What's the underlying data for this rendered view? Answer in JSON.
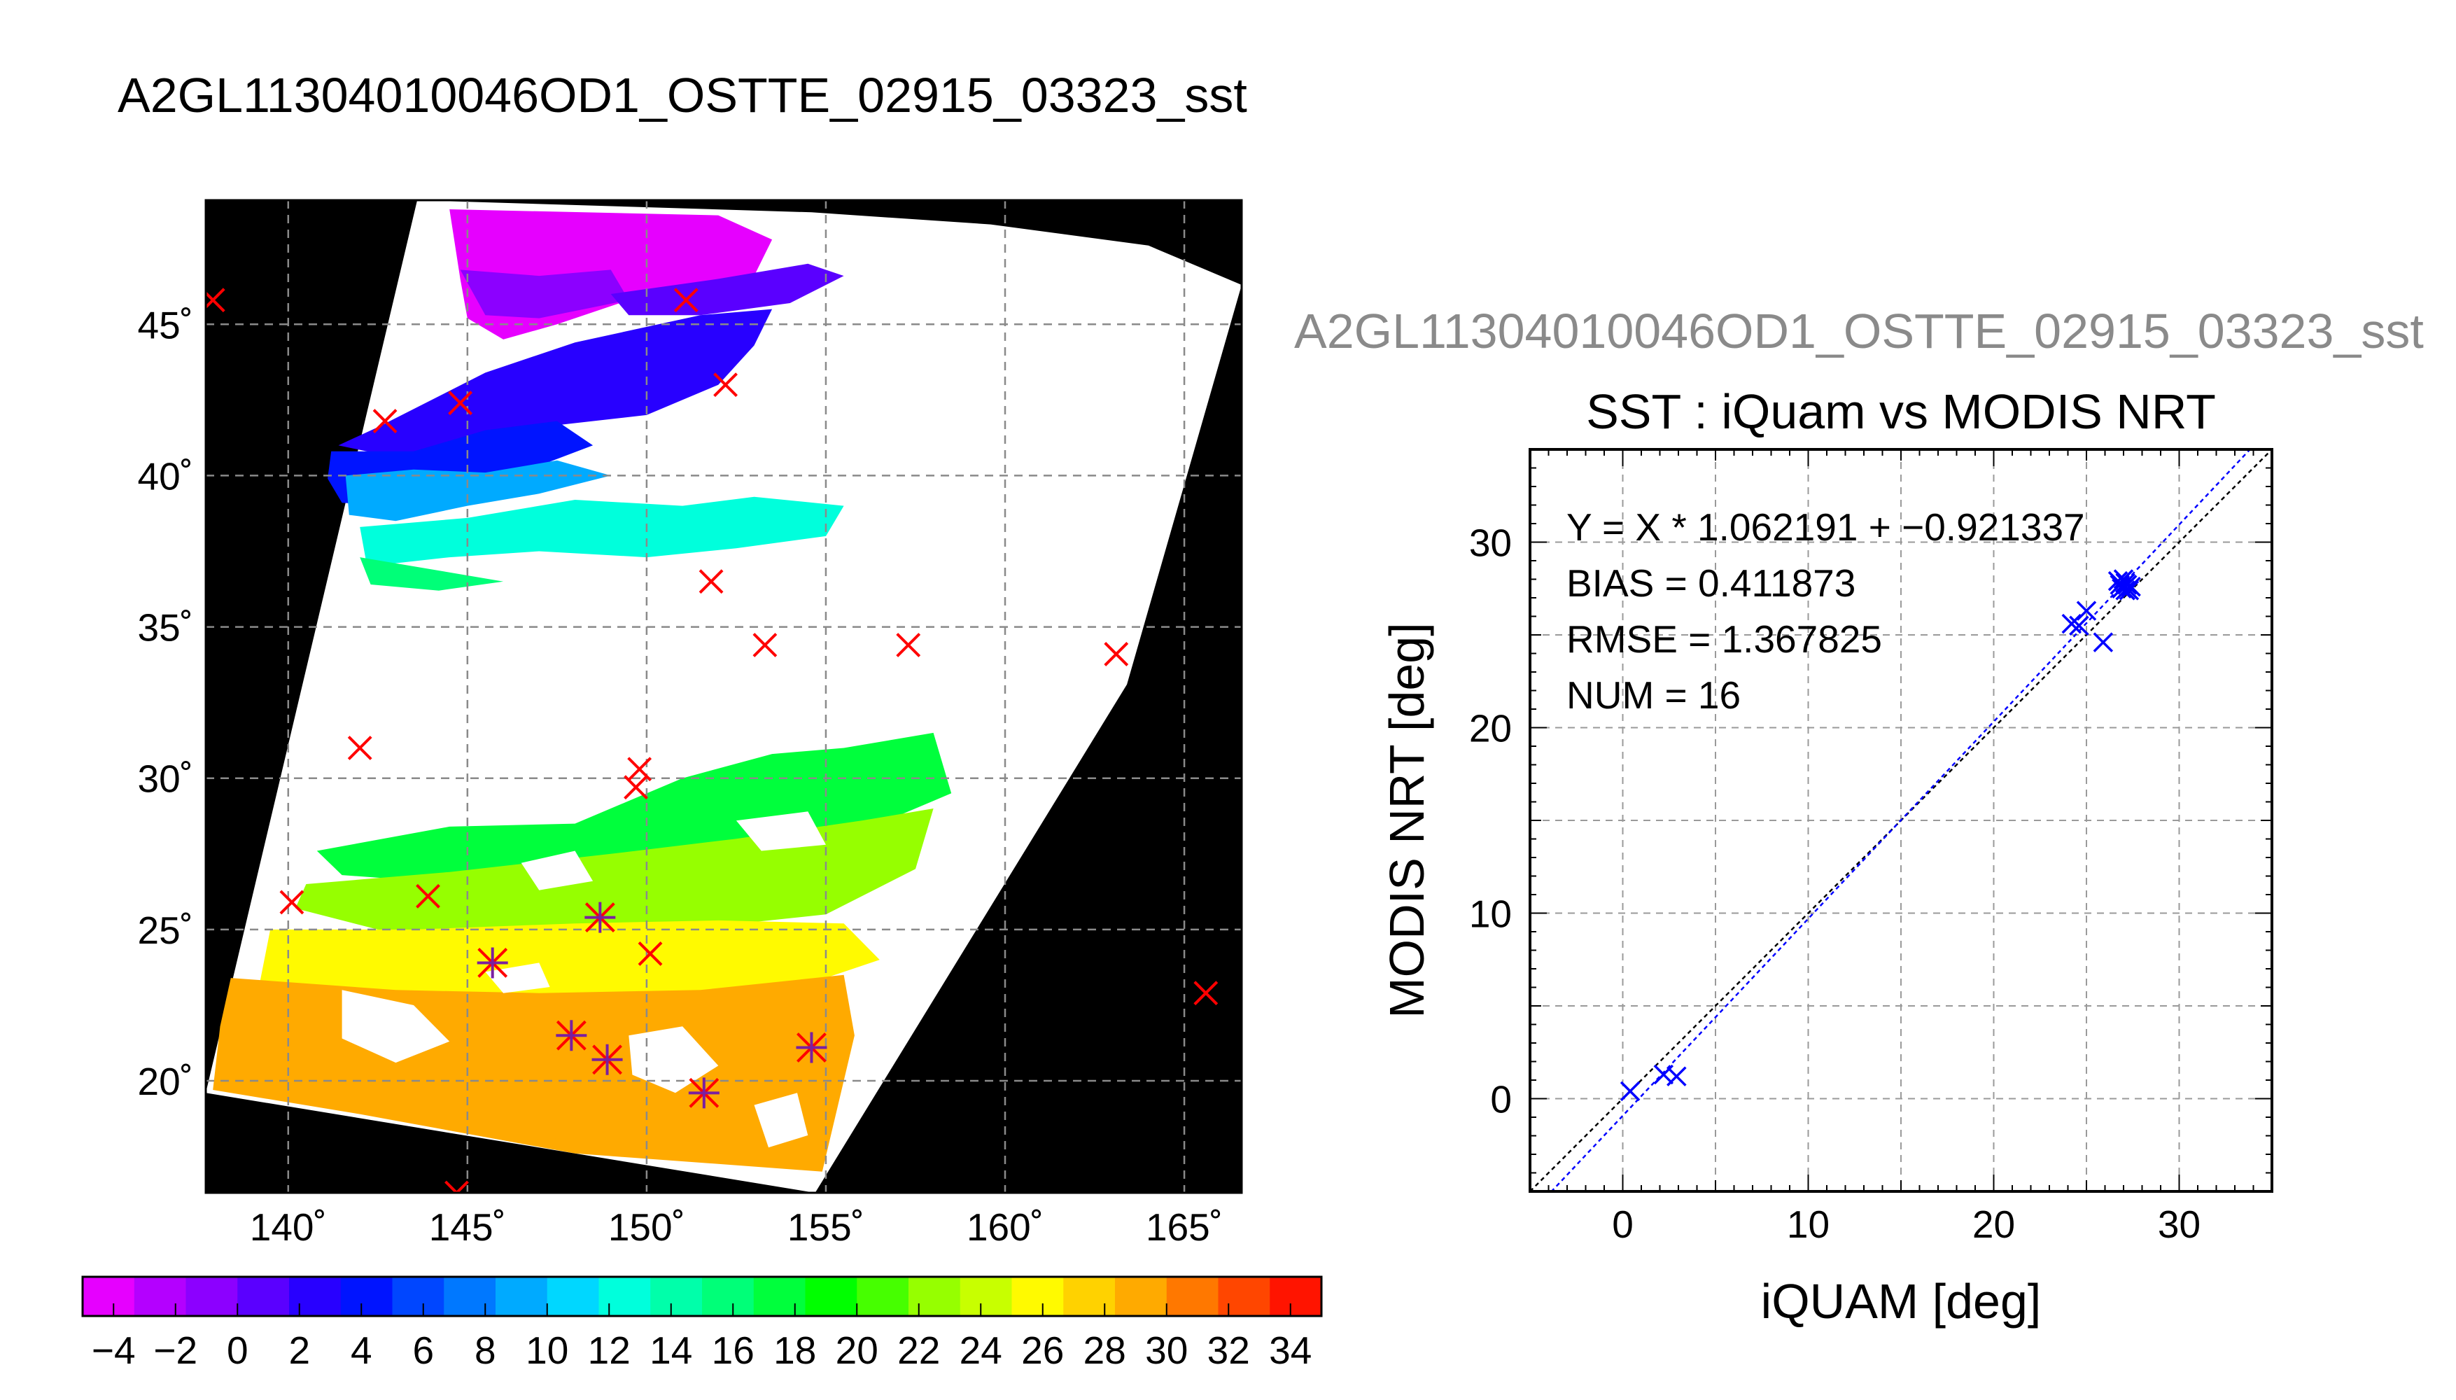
{
  "figure": {
    "main_title": "A2GL11304010046OD1_OSTTE_02915_03323_sst",
    "side_title": "A2GL11304010046OD1_OSTTE_02915_03323_sst"
  },
  "colors": {
    "map_background": "#000000",
    "no_data": "#ffffff",
    "marker_red": "#ff0000",
    "marker_purple": "#7a1fa0",
    "scatter_marker": "#0000ff",
    "fit_line": "#0000ff",
    "identity_line": "#000000",
    "grid": "#8a8a8a"
  },
  "chart_data": [
    {
      "type": "heatmap",
      "name": "sst-map",
      "xlim": [
        137.7,
        166.6
      ],
      "ylim": [
        16.3,
        49.1
      ],
      "x_ticks": [
        140,
        145,
        150,
        155,
        160,
        165
      ],
      "y_ticks": [
        20,
        25,
        30,
        35,
        40,
        45
      ],
      "x_tick_labels": [
        "140˚",
        "145˚",
        "150˚",
        "155˚",
        "160˚",
        "165˚"
      ],
      "y_tick_labels": [
        "20˚",
        "25˚",
        "30˚",
        "35˚",
        "40˚",
        "45˚"
      ],
      "grid": true,
      "swath": {
        "left_edge": [
          [
            143.6,
            49.1
          ],
          [
            137.7,
            19.6
          ]
        ],
        "bottom_edge": [
          [
            137.7,
            19.6
          ],
          [
            154.7,
            16.3
          ]
        ],
        "right_edge": [
          [
            154.7,
            16.3
          ],
          [
            163.4,
            33.1
          ],
          [
            166.6,
            46.3
          ]
        ],
        "top_edge": [
          [
            166.6,
            46.3
          ],
          [
            164.0,
            47.6
          ],
          [
            159.6,
            48.3
          ],
          [
            154.6,
            48.7
          ],
          [
            143.6,
            49.1
          ]
        ]
      },
      "colorbar": {
        "range": [
          -5,
          35
        ],
        "tick_values": [
          -4,
          -2,
          0,
          2,
          4,
          6,
          8,
          10,
          12,
          14,
          16,
          18,
          20,
          22,
          24,
          26,
          28,
          30,
          32,
          34
        ],
        "tick_labels": [
          "−4",
          "−2",
          "0",
          "2",
          "4",
          "6",
          "8",
          "10",
          "12",
          "14",
          "16",
          "18",
          "20",
          "22",
          "24",
          "26",
          "28",
          "30",
          "32",
          "34"
        ],
        "colors": [
          "#e600ff",
          "#b400ff",
          "#8c00ff",
          "#5a00ff",
          "#2800ff",
          "#0014ff",
          "#0046ff",
          "#0078ff",
          "#00aaff",
          "#00d7ff",
          "#00ffdc",
          "#00ffaa",
          "#00ff78",
          "#00ff3c",
          "#00ff00",
          "#46ff00",
          "#96ff00",
          "#c8ff00",
          "#fffa00",
          "#ffd200",
          "#ffaa00",
          "#ff7800",
          "#ff4600",
          "#ff1400"
        ]
      },
      "sst_regions": [
        {
          "value": -3.5,
          "polygon": [
            [
              144.5,
              48.8
            ],
            [
              152.0,
              48.6
            ],
            [
              153.5,
              47.8
            ],
            [
              153.0,
              46.6
            ],
            [
              149.5,
              45.8
            ],
            [
              147.5,
              45.0
            ],
            [
              146.0,
              44.5
            ],
            [
              145.0,
              45.2
            ],
            [
              144.8,
              46.5
            ]
          ]
        },
        {
          "value": -1.5,
          "polygon": [
            [
              144.8,
              46.8
            ],
            [
              147.0,
              46.6
            ],
            [
              149.0,
              46.8
            ],
            [
              149.5,
              45.8
            ],
            [
              147.0,
              45.2
            ],
            [
              145.5,
              45.3
            ]
          ]
        },
        {
          "value": 1.0,
          "polygon": [
            [
              149.0,
              46.0
            ],
            [
              152.0,
              46.5
            ],
            [
              154.5,
              47.0
            ],
            [
              155.5,
              46.6
            ],
            [
              154.0,
              45.7
            ],
            [
              151.5,
              45.3
            ],
            [
              149.5,
              45.3
            ]
          ]
        },
        {
          "value": 2.5,
          "polygon": [
            [
              142.5,
              41.6
            ],
            [
              145.5,
              43.4
            ],
            [
              148.0,
              44.4
            ],
            [
              151.5,
              45.3
            ],
            [
              153.5,
              45.5
            ],
            [
              153.0,
              44.3
            ],
            [
              152.0,
              43.0
            ],
            [
              150.0,
              42.0
            ],
            [
              147.0,
              41.6
            ],
            [
              144.5,
              41.0
            ],
            [
              143.0,
              40.6
            ],
            [
              141.4,
              41.0
            ]
          ]
        },
        {
          "value": 4.5,
          "polygon": [
            [
              141.2,
              40.8
            ],
            [
              143.5,
              40.8
            ],
            [
              145.5,
              41.5
            ],
            [
              147.5,
              41.8
            ],
            [
              148.5,
              41.0
            ],
            [
              146.5,
              40.1
            ],
            [
              144.5,
              40.0
            ],
            [
              143.0,
              39.0
            ],
            [
              141.5,
              39.1
            ],
            [
              141.1,
              39.9
            ]
          ]
        },
        {
          "value": 9.0,
          "polygon": [
            [
              141.6,
              40.0
            ],
            [
              143.5,
              40.2
            ],
            [
              145.5,
              40.1
            ],
            [
              147.5,
              40.5
            ],
            [
              149.0,
              40.0
            ],
            [
              147.0,
              39.4
            ],
            [
              145.0,
              39.0
            ],
            [
              143.0,
              38.5
            ],
            [
              141.7,
              38.7
            ]
          ]
        },
        {
          "value": 13.0,
          "polygon": [
            [
              142.0,
              38.3
            ],
            [
              145.0,
              38.6
            ],
            [
              148.0,
              39.2
            ],
            [
              151.0,
              39.0
            ],
            [
              153.0,
              39.3
            ],
            [
              155.5,
              39.0
            ],
            [
              155.0,
              38.0
            ],
            [
              152.5,
              37.6
            ],
            [
              150.0,
              37.3
            ],
            [
              147.0,
              37.5
            ],
            [
              144.5,
              37.3
            ],
            [
              142.2,
              37.0
            ]
          ]
        },
        {
          "value": 16.5,
          "polygon": [
            [
              142.0,
              37.3
            ],
            [
              144.0,
              36.9
            ],
            [
              146.0,
              36.5
            ],
            [
              144.2,
              36.2
            ],
            [
              142.3,
              36.4
            ]
          ]
        },
        {
          "value": 18.0,
          "polygon": [
            [
              140.8,
              27.6
            ],
            [
              144.5,
              28.4
            ],
            [
              148.0,
              28.5
            ],
            [
              151.0,
              30.0
            ],
            [
              153.5,
              30.8
            ],
            [
              155.5,
              31.0
            ],
            [
              158.0,
              31.5
            ],
            [
              158.5,
              29.5
            ],
            [
              156.5,
              28.5
            ],
            [
              153.5,
              27.8
            ],
            [
              150.0,
              27.0
            ],
            [
              145.0,
              26.5
            ],
            [
              141.5,
              26.8
            ]
          ]
        },
        {
          "value": 22.0,
          "polygon": [
            [
              140.5,
              26.5
            ],
            [
              144.5,
              26.9
            ],
            [
              149.0,
              27.5
            ],
            [
              152.5,
              28.0
            ],
            [
              156.0,
              28.6
            ],
            [
              158.0,
              29.0
            ],
            [
              157.5,
              27.0
            ],
            [
              155.0,
              25.5
            ],
            [
              151.0,
              25.0
            ],
            [
              147.0,
              24.8
            ],
            [
              142.5,
              25.0
            ],
            [
              140.2,
              25.7
            ]
          ]
        },
        {
          "value": 26.0,
          "polygon": [
            [
              139.5,
              25.0
            ],
            [
              143.5,
              25.0
            ],
            [
              148.0,
              25.2
            ],
            [
              152.0,
              25.3
            ],
            [
              155.5,
              25.2
            ],
            [
              156.5,
              24.0
            ],
            [
              154.0,
              23.0
            ],
            [
              150.0,
              22.7
            ],
            [
              146.0,
              22.6
            ],
            [
              142.0,
              22.7
            ],
            [
              139.2,
              23.2
            ]
          ]
        },
        {
          "value": 28.5,
          "polygon": [
            [
              138.4,
              23.4
            ],
            [
              143.0,
              23.0
            ],
            [
              147.0,
              22.9
            ],
            [
              151.5,
              23.0
            ],
            [
              155.5,
              23.5
            ],
            [
              155.8,
              21.5
            ],
            [
              155.3,
              19.0
            ],
            [
              154.9,
              17.0
            ],
            [
              148.0,
              17.6
            ],
            [
              142.0,
              18.9
            ],
            [
              137.9,
              19.7
            ],
            [
              138.1,
              21.8
            ]
          ]
        },
        {
          "value": 29.5,
          "polygon": [
            [
              147.5,
              22.0
            ],
            [
              151.0,
              22.5
            ],
            [
              155.0,
              22.5
            ],
            [
              155.2,
              19.5
            ],
            [
              154.8,
              17.2
            ],
            [
              150.0,
              17.5
            ],
            [
              147.0,
              18.2
            ]
          ]
        }
      ],
      "cloud_patches": [
        [
          [
            141.5,
            23.0
          ],
          [
            143.5,
            22.5
          ],
          [
            144.5,
            21.3
          ],
          [
            143.0,
            20.6
          ],
          [
            141.5,
            21.4
          ]
        ],
        [
          [
            149.5,
            21.5
          ],
          [
            151.0,
            21.8
          ],
          [
            152.0,
            20.5
          ],
          [
            150.8,
            19.6
          ],
          [
            149.6,
            20.2
          ]
        ],
        [
          [
            153.0,
            19.2
          ],
          [
            154.2,
            19.6
          ],
          [
            154.5,
            18.2
          ],
          [
            153.4,
            17.8
          ]
        ],
        [
          [
            146.5,
            27.2
          ],
          [
            148.0,
            27.6
          ],
          [
            148.5,
            26.6
          ],
          [
            147.0,
            26.3
          ]
        ],
        [
          [
            152.5,
            28.6
          ],
          [
            154.5,
            28.9
          ],
          [
            155.0,
            27.8
          ],
          [
            153.2,
            27.6
          ]
        ],
        [
          [
            145.5,
            23.6
          ],
          [
            147.0,
            23.9
          ],
          [
            147.3,
            23.1
          ],
          [
            146.0,
            22.9
          ]
        ]
      ],
      "matchups_red": [
        [
          137.9,
          45.8
        ],
        [
          151.1,
          45.8
        ],
        [
          142.7,
          41.8
        ],
        [
          144.8,
          42.4
        ],
        [
          152.2,
          43.0
        ],
        [
          151.8,
          36.5
        ],
        [
          153.3,
          34.4
        ],
        [
          157.3,
          34.4
        ],
        [
          163.1,
          34.1
        ],
        [
          142.0,
          31.0
        ],
        [
          149.8,
          30.3
        ],
        [
          149.7,
          29.7
        ],
        [
          140.1,
          25.9
        ],
        [
          143.9,
          26.1
        ],
        [
          150.1,
          24.2
        ],
        [
          165.6,
          22.9
        ],
        [
          144.7,
          16.3
        ]
      ],
      "matchups_purple": [
        [
          145.7,
          23.9
        ],
        [
          148.7,
          25.4
        ],
        [
          147.9,
          21.5
        ],
        [
          148.9,
          20.7
        ],
        [
          151.6,
          19.6
        ],
        [
          154.6,
          21.1
        ]
      ]
    },
    {
      "type": "scatter",
      "name": "iquam-vs-modis",
      "title": "SST : iQuam vs MODIS NRT",
      "xlabel": "iQUAM [deg]",
      "ylabel": "MODIS NRT [deg]",
      "xlim": [
        -5,
        35
      ],
      "ylim": [
        -5,
        35
      ],
      "x_ticks": [
        0,
        10,
        20,
        30
      ],
      "y_ticks": [
        0,
        10,
        20,
        30
      ],
      "minor_ticks": 5,
      "grid": true,
      "annotations": [
        "Y = X * 1.062191 + −0.921337",
        "BIAS = 0.411873",
        "RMSE = 1.367825",
        "NUM = 16"
      ],
      "fit": {
        "slope": 1.062191,
        "intercept": -0.921337
      },
      "identity_line": true,
      "points": [
        [
          0.4,
          0.4
        ],
        [
          2.2,
          1.3
        ],
        [
          2.9,
          1.2
        ],
        [
          24.2,
          25.6
        ],
        [
          24.6,
          25.5
        ],
        [
          25.0,
          26.3
        ],
        [
          25.9,
          24.6
        ],
        [
          26.7,
          27.9
        ],
        [
          26.8,
          27.7
        ],
        [
          26.9,
          27.5
        ],
        [
          27.0,
          28.0
        ],
        [
          27.1,
          27.8
        ],
        [
          27.1,
          27.4
        ],
        [
          27.2,
          27.7
        ],
        [
          27.3,
          27.4
        ],
        [
          27.4,
          27.6
        ]
      ]
    }
  ]
}
